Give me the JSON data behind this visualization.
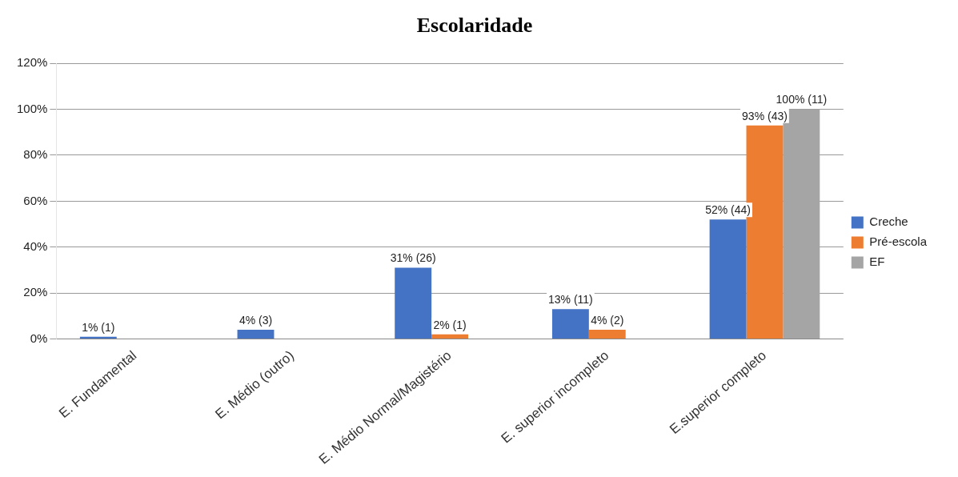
{
  "chart_data": {
    "type": "bar",
    "title": "Escolaridade",
    "categories": [
      "E. Fundamental",
      "E. Médio (outro)",
      "E. Médio Normal/Magistério",
      "E. superior incompleto",
      "E.superior completo"
    ],
    "series": [
      {
        "name": "Creche",
        "color": "#4472c4",
        "values": [
          1,
          4,
          31,
          13,
          52
        ],
        "value_labels": [
          "1% (1)",
          "4% (3)",
          "31% (26)",
          "13% (11)",
          "52% (44)"
        ]
      },
      {
        "name": "Pré-escola",
        "color": "#ed7d31",
        "values": [
          null,
          null,
          2,
          4,
          93
        ],
        "value_labels": [
          null,
          null,
          "2% (1)",
          "4% (2)",
          "93% (43)"
        ]
      },
      {
        "name": "EF",
        "color": "#a5a5a5",
        "values": [
          null,
          null,
          null,
          null,
          100
        ],
        "value_labels": [
          null,
          null,
          null,
          null,
          "100% (11)"
        ]
      }
    ],
    "ylim": [
      0,
      120
    ],
    "yticks": [
      {
        "value": 0,
        "label": "0%"
      },
      {
        "value": 20,
        "label": "20%"
      },
      {
        "value": 40,
        "label": "40%"
      },
      {
        "value": 60,
        "label": "60%"
      },
      {
        "value": 80,
        "label": "80%"
      },
      {
        "value": 100,
        "label": "100%"
      },
      {
        "value": 120,
        "label": "120%"
      }
    ],
    "grid": "y",
    "legend": "right"
  }
}
